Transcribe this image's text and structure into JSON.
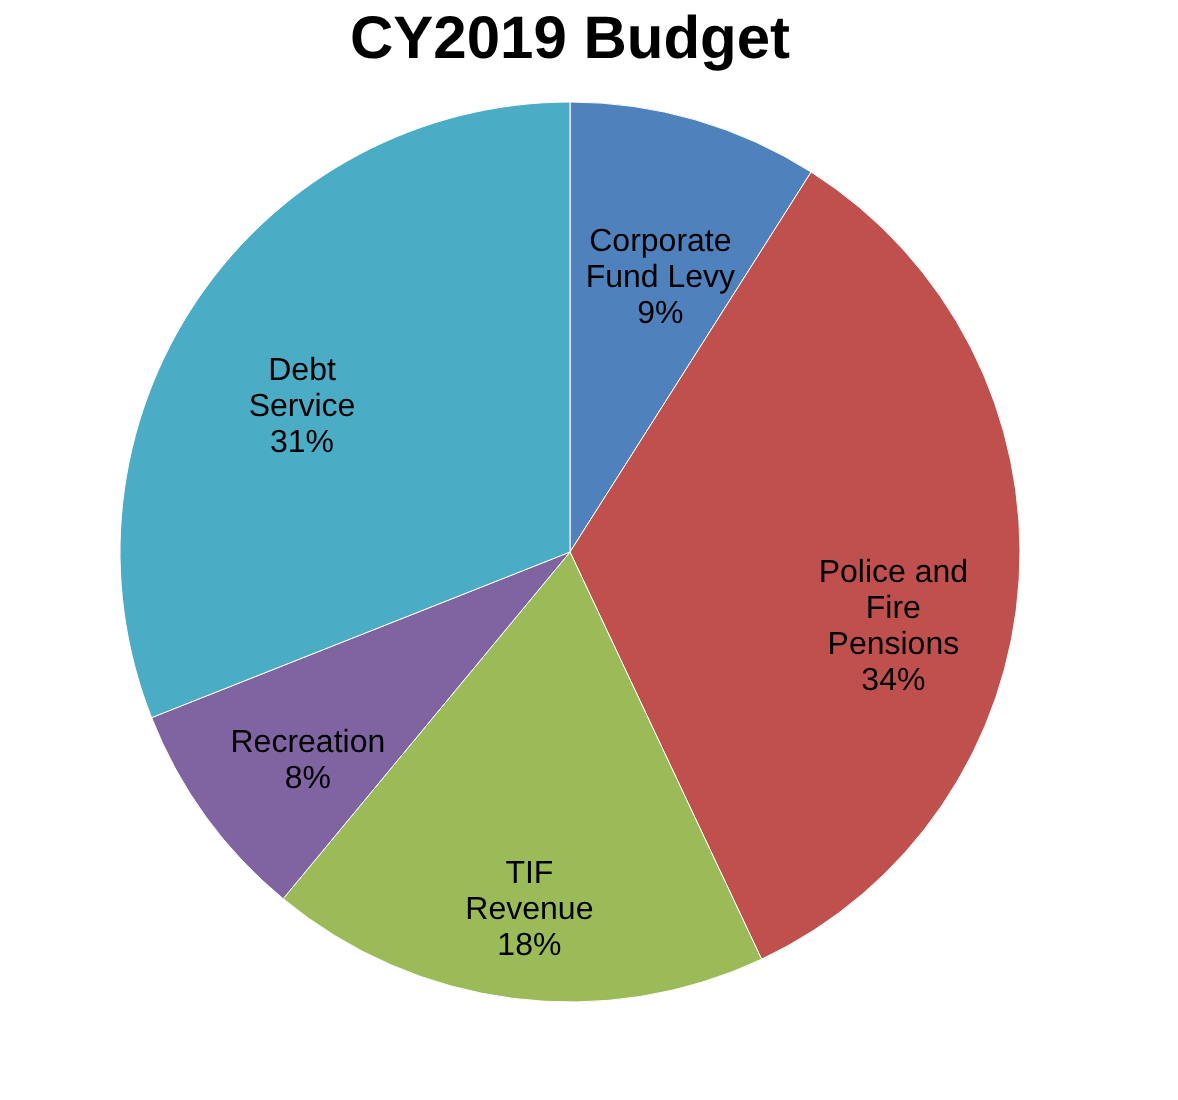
{
  "chart_data": {
    "type": "pie",
    "title": "CY2019 Budget",
    "categories": [
      "Corporate Fund Levy",
      "Police and Fire Pensions",
      "TIF Revenue",
      "Recreation",
      "Debt Service"
    ],
    "values": [
      9,
      34,
      18,
      8,
      31
    ],
    "colors": [
      "#4f81bd",
      "#c0504d",
      "#9bbb59",
      "#8064a2",
      "#4bacc6"
    ],
    "value_labels": [
      "9%",
      "34%",
      "18%",
      "8%",
      "31%"
    ]
  }
}
